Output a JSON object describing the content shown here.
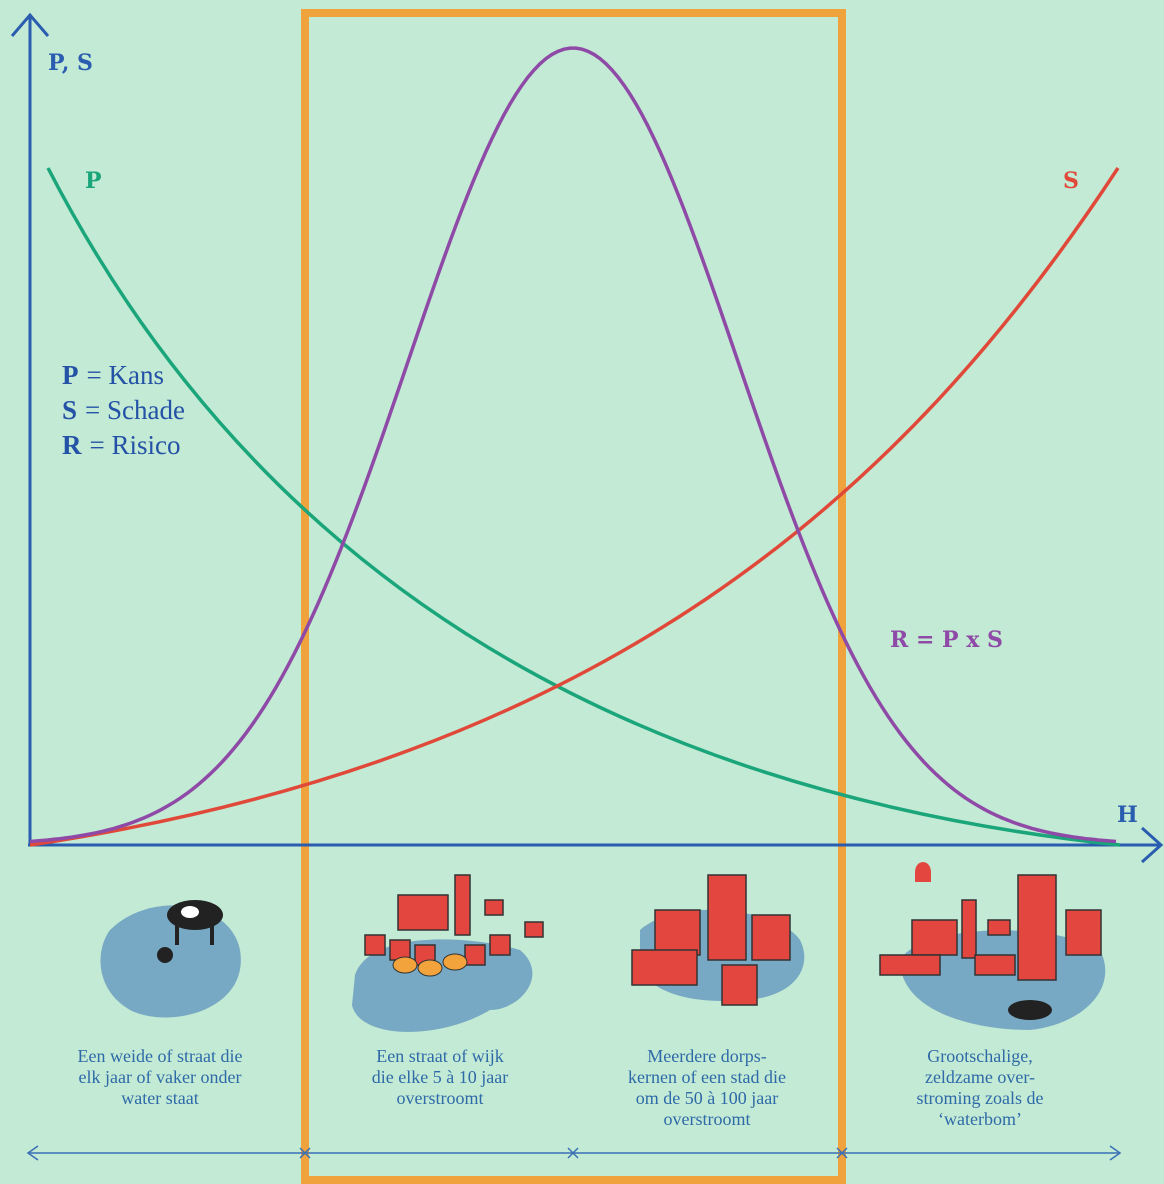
{
  "axes": {
    "y_label": "P, S",
    "x_label": "H"
  },
  "curves": {
    "p_label": "P",
    "s_label": "S",
    "r_label": "R = P x S"
  },
  "legend": [
    {
      "letter": "P",
      "text": "= Kans"
    },
    {
      "letter": "S",
      "text": "= Schade"
    },
    {
      "letter": "R",
      "text": "= Risico"
    }
  ],
  "captions": [
    [
      "Een weide of straat die",
      "elk jaar of vaker onder",
      "water staat"
    ],
    [
      "Een straat of wijk",
      "die elke 5 à 10 jaar",
      "overstroomt"
    ],
    [
      "Meerdere dorps-",
      "kernen of een stad die",
      "om de 50 à 100 jaar",
      "overstroomt"
    ],
    [
      "Grootschalige,",
      "zeldzame over-",
      "stroming zoals de",
      "‘waterbom’"
    ]
  ]
}
